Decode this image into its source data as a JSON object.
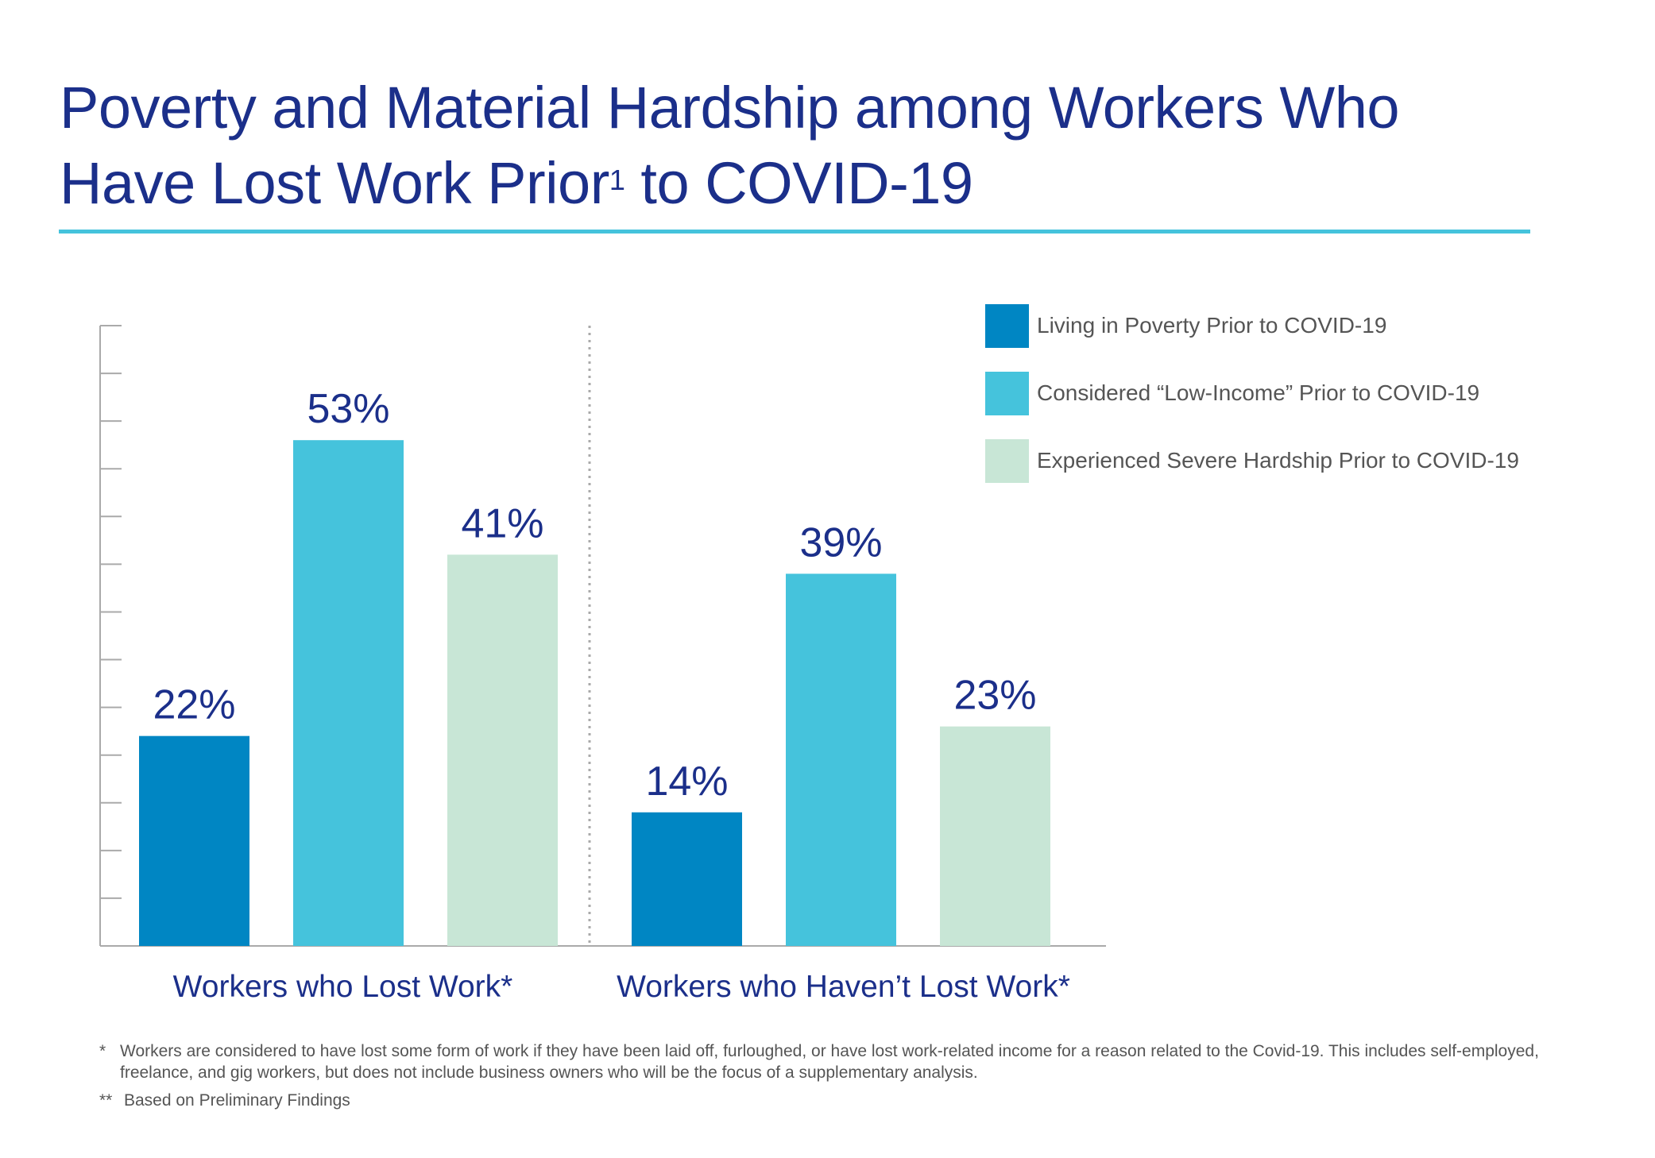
{
  "title": {
    "line1": "Poverty and Material Hardship among Workers Who",
    "line2_pre": "Have Lost Work Prior",
    "line2_sup": "1",
    "line2_post": " to COVID-19"
  },
  "colors": {
    "title": "#1b2f8a",
    "rule": "#45c3dc",
    "axis": "#aaaaaa"
  },
  "chart_data": {
    "type": "bar",
    "title": "Poverty and Material Hardship among Workers Who Have Lost Work Prior1 to COVID-19",
    "categories": [
      "Workers who Lost Work*",
      "Workers who Haven’t Lost Work*"
    ],
    "series": [
      {
        "name": "Living in Poverty Prior to COVID-19",
        "color": "#0086c3",
        "values": [
          22,
          14
        ],
        "labels": [
          "22%",
          "14%"
        ]
      },
      {
        "name": "Considered “Low-Income” Prior to COVID-19",
        "color": "#45c3dc",
        "values": [
          53,
          39
        ],
        "labels": [
          "53%",
          "39%"
        ]
      },
      {
        "name": "Experienced Severe Hardship Prior to COVID-19",
        "color": "#c8e6d6",
        "values": [
          41,
          23
        ],
        "labels": [
          "41%",
          "23%"
        ]
      }
    ],
    "ylim": [
      0,
      65
    ],
    "grid": false,
    "legend_position": "top-right"
  },
  "footnotes": [
    {
      "mark": "*",
      "text": "Workers are considered to have lost some form of work if they have been laid off, furloughed, or have lost work-related income for a reason related to the Covid-19. This includes self-employed, freelance, and gig workers, but does not include business owners who will be the focus of a supplementary analysis."
    },
    {
      "mark": "**",
      "text": "Based on Preliminary Findings"
    }
  ]
}
